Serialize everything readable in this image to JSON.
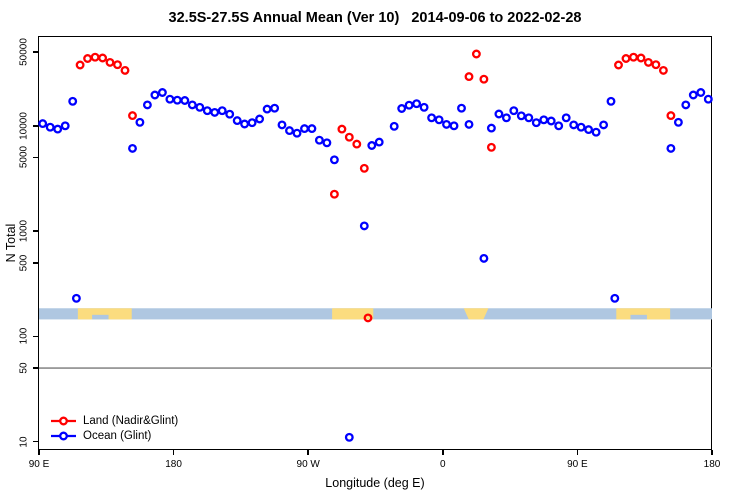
{
  "chart_data": {
    "type": "scatter",
    "title": "32.5S-27.5S Annual Mean (Ver 10)   2014-09-06 to 2022-02-28",
    "xlabel": "Longitude (deg E)",
    "ylabel": "N Total",
    "x_axis": {
      "range_deg": [
        90,
        540
      ],
      "ticks": [
        {
          "deg": 90,
          "label": "90 E"
        },
        {
          "deg": 180,
          "label": "180"
        },
        {
          "deg": 270,
          "label": "90 W"
        },
        {
          "deg": 360,
          "label": "0"
        },
        {
          "deg": 450,
          "label": "90 E"
        },
        {
          "deg": 540,
          "label": "180"
        }
      ]
    },
    "y_axis": {
      "scale": "log10",
      "range": [
        8.3,
        69000
      ],
      "ticks": [
        {
          "value": 10,
          "label": "10"
        },
        {
          "value": 50,
          "label": "50"
        },
        {
          "value": 100,
          "label": "100"
        },
        {
          "value": 500,
          "label": "500"
        },
        {
          "value": 1000,
          "label": "1000"
        },
        {
          "value": 5000,
          "label": "5000"
        },
        {
          "value": 10000,
          "label": "10000"
        },
        {
          "value": 50000,
          "label": "50000"
        }
      ]
    },
    "reference_line": {
      "value": 50,
      "color": "#787878"
    },
    "map_strip": {
      "ocean_color": "#AFC7E1",
      "land_color": "#FBDC7F",
      "n_range": [
        145,
        185
      ],
      "land_segments": [
        {
          "name": "australia",
          "from": 116,
          "to": 152,
          "notch": [
            125.5,
            136.5
          ]
        },
        {
          "name": "south-america",
          "from": 286,
          "to": 313.5
        },
        {
          "name": "africa",
          "from": 374,
          "to": 390.5,
          "shape": "taper-down"
        },
        {
          "name": "australia-repeat",
          "from": 476,
          "to": 512,
          "notch": [
            485.5,
            496.5
          ]
        }
      ]
    },
    "series": [
      {
        "name": "Land (Nadir&Glint)",
        "color": "#FF0000",
        "marker": "open-circle",
        "points": [
          [
            117.5,
            37800
          ],
          [
            122.5,
            43600
          ],
          [
            127.5,
            44800
          ],
          [
            132.5,
            44000
          ],
          [
            137.5,
            40000
          ],
          [
            142.5,
            38000
          ],
          [
            147.5,
            33600
          ],
          [
            152.5,
            12500
          ],
          [
            287.5,
            2240
          ],
          [
            292.5,
            9300
          ],
          [
            297.5,
            7800
          ],
          [
            302.5,
            6700
          ],
          [
            307.5,
            3950
          ],
          [
            310,
            150
          ],
          [
            377.5,
            29300
          ],
          [
            382.5,
            48100
          ],
          [
            387.5,
            27700
          ],
          [
            392.5,
            6250
          ],
          [
            477.5,
            37800
          ],
          [
            482.5,
            43600
          ],
          [
            487.5,
            44800
          ],
          [
            492.5,
            44000
          ],
          [
            497.5,
            40000
          ],
          [
            502.5,
            38000
          ],
          [
            507.5,
            33600
          ],
          [
            512.5,
            12500
          ]
        ]
      },
      {
        "name": "Ocean (Glint)",
        "color": "#0000FF",
        "marker": "open-circle",
        "points": [
          [
            92.5,
            10500
          ],
          [
            97.5,
            9700
          ],
          [
            102.5,
            9300
          ],
          [
            107.5,
            10000
          ],
          [
            112.5,
            17100
          ],
          [
            115,
            230
          ],
          [
            152.5,
            6100
          ],
          [
            157.5,
            10800
          ],
          [
            162.5,
            15800
          ],
          [
            167.5,
            19600
          ],
          [
            172.5,
            20700
          ],
          [
            177.5,
            17900
          ],
          [
            182.5,
            17500
          ],
          [
            187.5,
            17400
          ],
          [
            192.5,
            15800
          ],
          [
            197.5,
            15000
          ],
          [
            202.5,
            13900
          ],
          [
            207.5,
            13400
          ],
          [
            212.5,
            13900
          ],
          [
            217.5,
            12900
          ],
          [
            222.5,
            11200
          ],
          [
            227.5,
            10400
          ],
          [
            232.5,
            10700
          ],
          [
            237.5,
            11600
          ],
          [
            242.5,
            14400
          ],
          [
            247.5,
            14700
          ],
          [
            252.5,
            10200
          ],
          [
            257.5,
            9000
          ],
          [
            262.5,
            8500
          ],
          [
            267.5,
            9400
          ],
          [
            272.5,
            9400
          ],
          [
            277.5,
            7300
          ],
          [
            282.5,
            6900
          ],
          [
            287.5,
            4750
          ],
          [
            297.5,
            11
          ],
          [
            307.5,
            1120
          ],
          [
            312.5,
            6500
          ],
          [
            317.5,
            7000
          ],
          [
            327.5,
            9900
          ],
          [
            332.5,
            14600
          ],
          [
            337.5,
            15700
          ],
          [
            342.5,
            16200
          ],
          [
            347.5,
            15000
          ],
          [
            352.5,
            11900
          ],
          [
            357.5,
            11400
          ],
          [
            362.5,
            10300
          ],
          [
            367.5,
            10000
          ],
          [
            372.5,
            14700
          ],
          [
            377.5,
            10300
          ],
          [
            387.5,
            550
          ],
          [
            392.5,
            9500
          ],
          [
            397.5,
            12950
          ],
          [
            402.5,
            11900
          ],
          [
            407.5,
            13900
          ],
          [
            412.5,
            12450
          ],
          [
            417.5,
            11900
          ],
          [
            422.5,
            10700
          ],
          [
            427.5,
            11400
          ],
          [
            432.5,
            11100
          ],
          [
            437.5,
            10000
          ],
          [
            442.5,
            11900
          ],
          [
            447.5,
            10200
          ],
          [
            452.5,
            9700
          ],
          [
            457.5,
            9200
          ],
          [
            462.5,
            8700
          ],
          [
            467.5,
            10200
          ],
          [
            472.5,
            17100
          ],
          [
            475,
            230
          ],
          [
            512.5,
            6100
          ],
          [
            517.5,
            10800
          ],
          [
            522.5,
            15800
          ],
          [
            527.5,
            19600
          ],
          [
            532.5,
            20700
          ],
          [
            537.5,
            17900
          ]
        ]
      }
    ]
  },
  "legend": {
    "items": [
      {
        "label": "Land (Nadir&Glint)",
        "color": "#FF0000"
      },
      {
        "label": "Ocean (Glint)",
        "color": "#0000FF"
      }
    ]
  }
}
